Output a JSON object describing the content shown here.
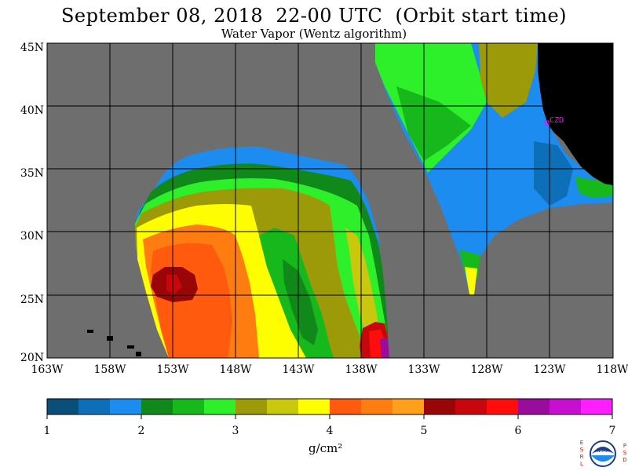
{
  "header": {
    "title": "September 08, 2018  22-00 UTC  (Orbit start time)",
    "subtitle": "Water Vapor (Wentz algorithm)"
  },
  "map": {
    "lat_labels": [
      "45N",
      "40N",
      "35N",
      "30N",
      "25N",
      "20N"
    ],
    "lon_labels": [
      "163W",
      "158W",
      "153W",
      "148W",
      "143W",
      "138W",
      "133W",
      "128W",
      "123W",
      "118W"
    ],
    "station_label": "CZD",
    "colors": {
      "no_data": "#6e6e6e",
      "land": "#000000",
      "grid": "#000000",
      "station": "#ff00ff"
    }
  },
  "colorbar": {
    "units": "g/cm²",
    "tick_labels": [
      "1",
      "2",
      "3",
      "4",
      "5",
      "6",
      "7"
    ],
    "range": [
      1,
      7
    ],
    "colors": [
      "#0a4f7a",
      "#0d6fb8",
      "#1c8cf0",
      "#10891a",
      "#16b81b",
      "#2ef02a",
      "#9c9a08",
      "#c9c80d",
      "#fefe00",
      "#ff5a0e",
      "#ff7d10",
      "#ff9f1a",
      "#9a0507",
      "#c8070d",
      "#ff0c0c",
      "#9a0c9c",
      "#c80ed0",
      "#ff1eff"
    ]
  },
  "logo": {
    "left_letters": "ESRL",
    "right_letters": "PSD",
    "badge_text": "NOAA"
  }
}
